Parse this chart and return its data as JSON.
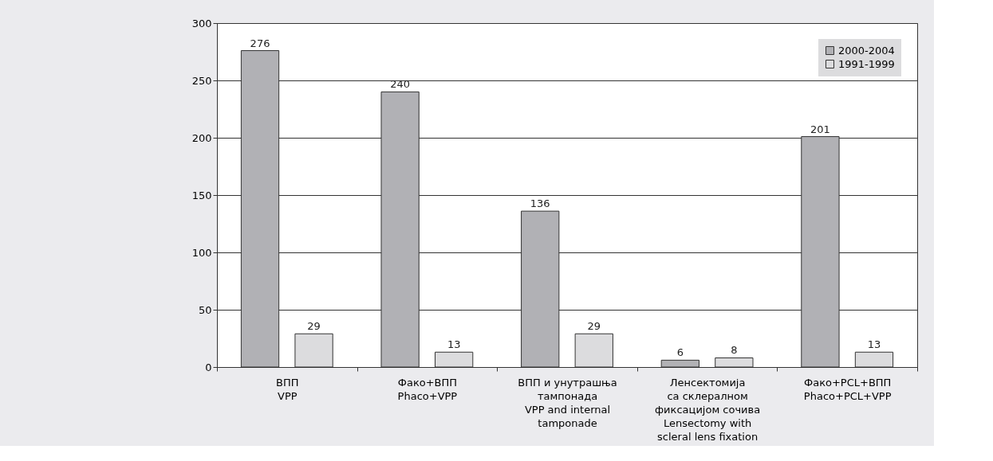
{
  "chart_data": {
    "type": "bar",
    "categories": [
      "ВПП\nVPP",
      "Фако+ВПП\nPhaco+VPP",
      "ВПП и унутрашња\nтампонада\nVPP and internal\ntamponade",
      "Ленсектомија\nса склералном\nфиксацијом сочива\nLensectomy with\nscleral lens fixation",
      "Фако+PCL+ВПП\nPhaco+PCL+VPP"
    ],
    "series": [
      {
        "name": "2000-2004",
        "color": "#b1b1b5",
        "values": [
          276,
          240,
          136,
          6,
          201
        ]
      },
      {
        "name": "1991-1999",
        "color": "#dcdcde",
        "values": [
          29,
          13,
          29,
          8,
          13
        ]
      }
    ],
    "ylim": [
      0,
      300
    ],
    "yticks": [
      0,
      50,
      100,
      150,
      200,
      250,
      300
    ],
    "grid": "y",
    "legend": "top right",
    "data_labels": true
  }
}
